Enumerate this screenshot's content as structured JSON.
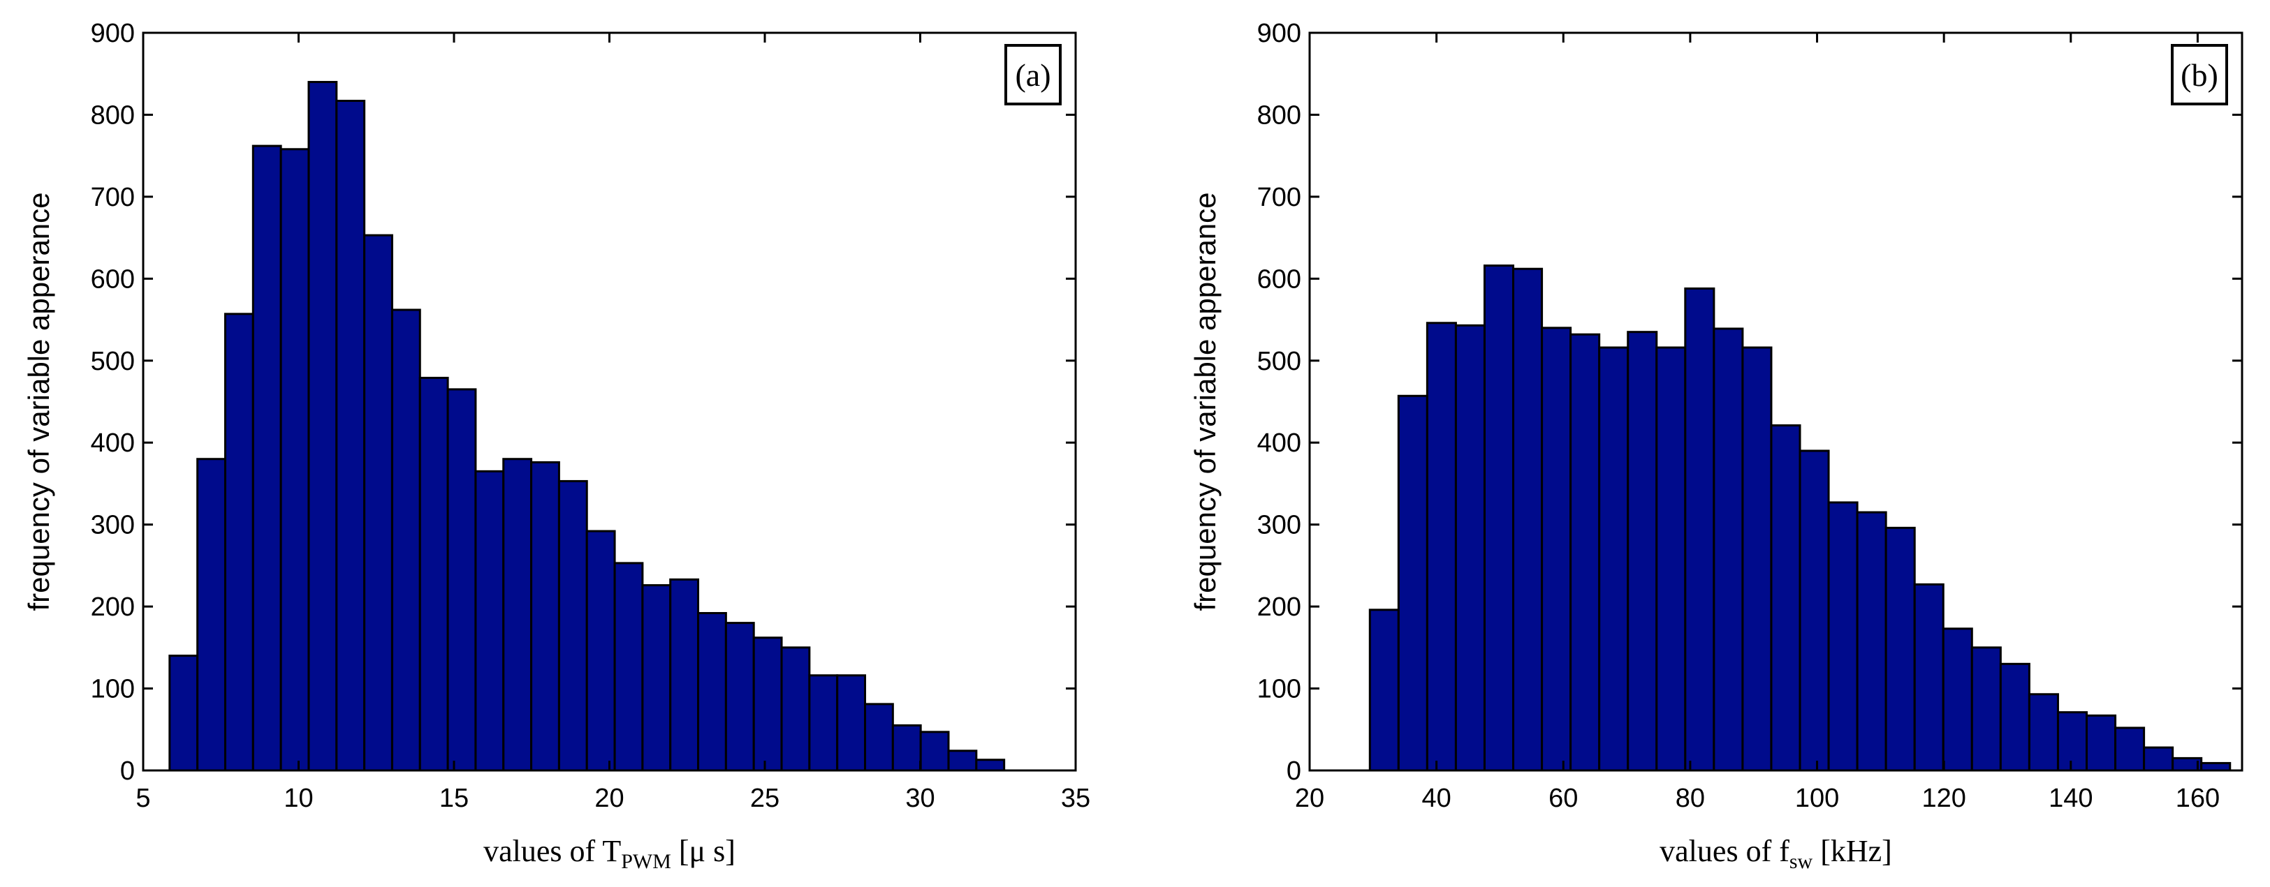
{
  "chart_data": [
    {
      "type": "bar",
      "panel_label": "(a)",
      "xlabel_prefix": "values of T",
      "xlabel_sub": "PWM",
      "xlabel_suffix": " [μ s]",
      "ylabel": "frequency of variable apperance",
      "xlim": [
        5,
        35
      ],
      "ylim": [
        0,
        900
      ],
      "xticks": [
        5,
        10,
        15,
        20,
        25,
        30,
        35
      ],
      "yticks": [
        0,
        100,
        200,
        300,
        400,
        500,
        600,
        700,
        800,
        900
      ],
      "bin_start": 5.85,
      "bin_width": 0.895,
      "values": [
        140,
        380,
        557,
        762,
        758,
        840,
        817,
        653,
        562,
        479,
        465,
        365,
        380,
        376,
        353,
        292,
        253,
        226,
        233,
        192,
        180,
        162,
        150,
        116,
        116,
        81,
        55,
        47,
        24,
        13
      ],
      "legend": "none",
      "grid": false
    },
    {
      "type": "bar",
      "panel_label": "(b)",
      "xlabel_prefix": "values of f",
      "xlabel_sub": "sw",
      "xlabel_suffix": "  [kHz]",
      "ylabel": "frequency of variable apperance",
      "xlim": [
        20,
        167
      ],
      "ylim": [
        0,
        900
      ],
      "xticks": [
        20,
        40,
        60,
        80,
        100,
        120,
        140,
        160
      ],
      "yticks": [
        0,
        100,
        200,
        300,
        400,
        500,
        600,
        700,
        800,
        900
      ],
      "bin_start": 29.5,
      "bin_width": 4.52,
      "values": [
        196,
        457,
        546,
        543,
        616,
        612,
        540,
        532,
        516,
        535,
        516,
        588,
        539,
        516,
        421,
        390,
        327,
        315,
        296,
        227,
        173,
        150,
        130,
        93,
        71,
        67,
        52,
        28,
        15,
        9
      ],
      "legend": "none",
      "grid": false
    }
  ]
}
